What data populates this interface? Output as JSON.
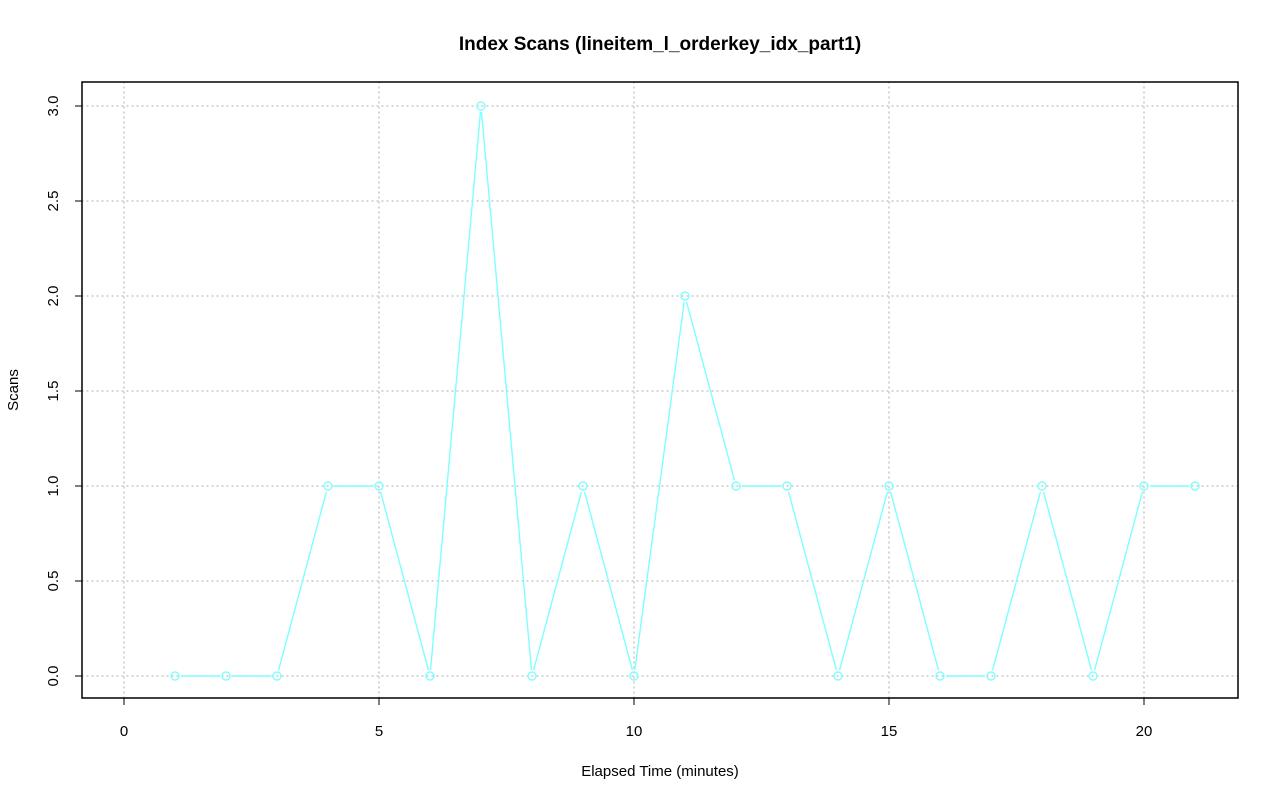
{
  "chart_data": {
    "type": "line",
    "title": "Index Scans (lineitem_l_orderkey_idx_part1)",
    "xlabel": "Elapsed Time (minutes)",
    "ylabel": "Scans",
    "xlim": [
      0,
      21
    ],
    "ylim": [
      0,
      3
    ],
    "xticks": [
      0,
      5,
      10,
      15,
      20
    ],
    "yticks": [
      0.0,
      0.5,
      1.0,
      1.5,
      2.0,
      2.5,
      3.0
    ],
    "xtick_labels": [
      "0",
      "5",
      "10",
      "15",
      "20"
    ],
    "ytick_labels": [
      "0.0",
      "0.5",
      "1.0",
      "1.5",
      "2.0",
      "2.5",
      "3.0"
    ],
    "grid": true,
    "series": [
      {
        "color": "#7fffff",
        "marker": "circle",
        "x": [
          1,
          2,
          3,
          4,
          5,
          6,
          7,
          8,
          9,
          10,
          11,
          12,
          13,
          14,
          15,
          16,
          17,
          18,
          19,
          20,
          21
        ],
        "y": [
          0,
          0,
          0,
          1,
          1,
          0,
          3,
          0,
          1,
          0,
          2,
          1,
          1,
          0,
          1,
          0,
          0,
          1,
          0,
          1,
          1
        ]
      }
    ]
  }
}
